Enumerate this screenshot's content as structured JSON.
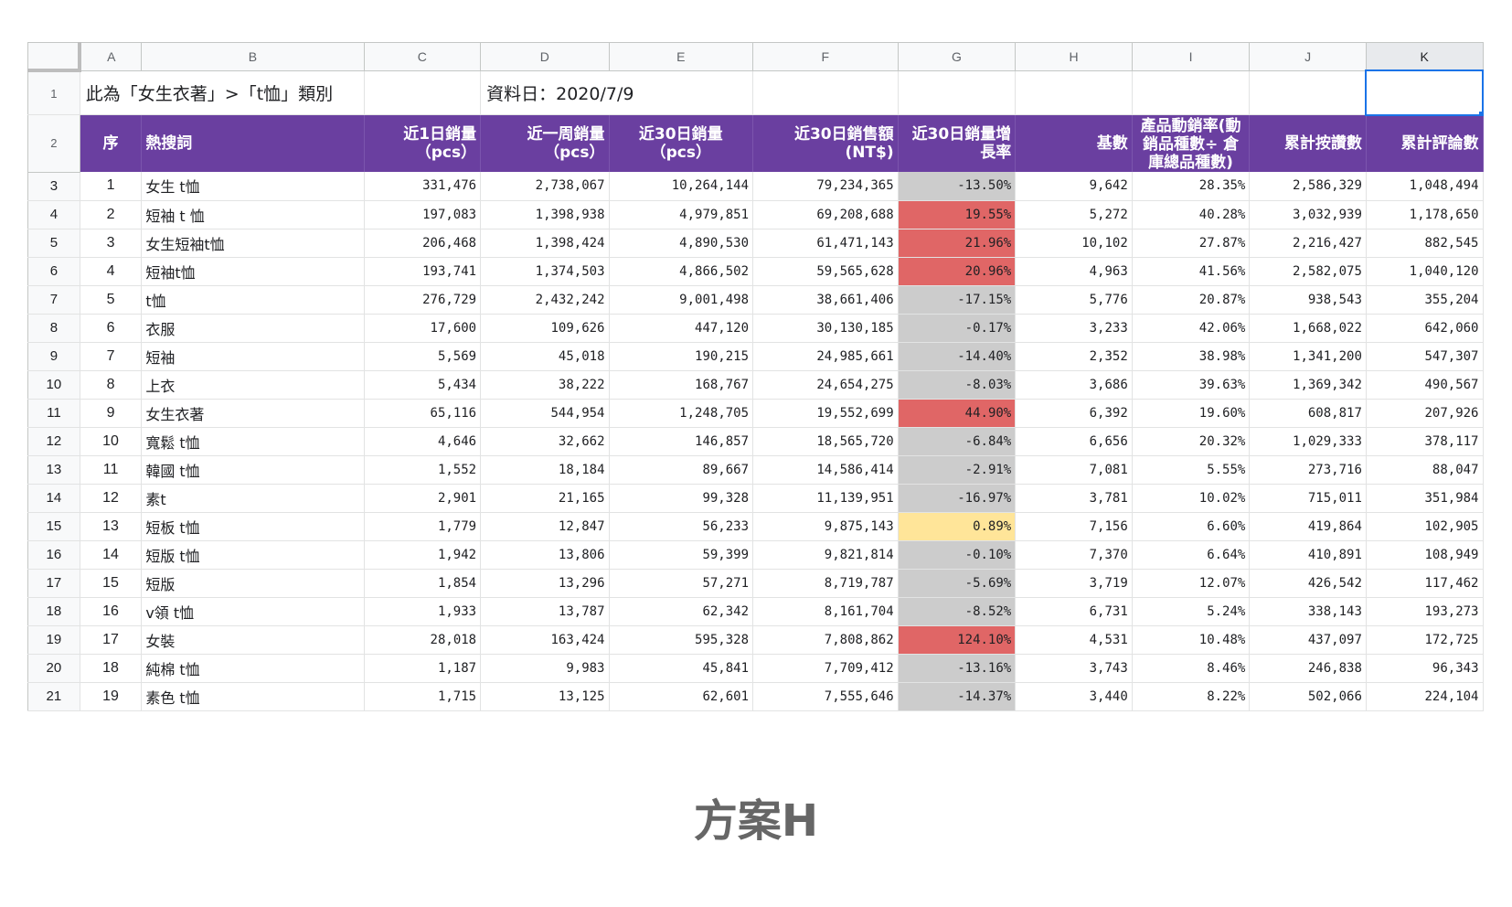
{
  "columns": [
    "A",
    "B",
    "C",
    "D",
    "E",
    "F",
    "G",
    "H",
    "I",
    "J",
    "K"
  ],
  "row1": {
    "category_note": "此為「女生衣著」>「t恤」類別",
    "data_date": "資料日：2020/7/9"
  },
  "headers": [
    "序",
    "熱搜詞",
    "近1日銷量（pcs）",
    "近一周銷量（pcs）",
    "近30日銷量（pcs）",
    "近30日銷售額(NT$)",
    "近30日銷量增長率",
    "基數",
    "產品動銷率(動銷品種數÷ 倉庫總品種數)",
    "累計按讚數",
    "累計評論數"
  ],
  "rows": [
    {
      "seq": "1",
      "kw": "女生 t恤",
      "d1": "331,476",
      "w1": "2,738,067",
      "d30": "10,264,144",
      "sales": "79,234,365",
      "growth": "-13.50%",
      "gc": "grey",
      "base": "9,642",
      "rate": "28.35%",
      "likes": "2,586,329",
      "reviews": "1,048,494"
    },
    {
      "seq": "2",
      "kw": "短袖 t 恤",
      "d1": "197,083",
      "w1": "1,398,938",
      "d30": "4,979,851",
      "sales": "69,208,688",
      "growth": "19.55%",
      "gc": "red",
      "base": "5,272",
      "rate": "40.28%",
      "likes": "3,032,939",
      "reviews": "1,178,650"
    },
    {
      "seq": "3",
      "kw": "女生短袖t恤",
      "d1": "206,468",
      "w1": "1,398,424",
      "d30": "4,890,530",
      "sales": "61,471,143",
      "growth": "21.96%",
      "gc": "red",
      "base": "10,102",
      "rate": "27.87%",
      "likes": "2,216,427",
      "reviews": "882,545"
    },
    {
      "seq": "4",
      "kw": "短袖t恤",
      "d1": "193,741",
      "w1": "1,374,503",
      "d30": "4,866,502",
      "sales": "59,565,628",
      "growth": "20.96%",
      "gc": "red",
      "base": "4,963",
      "rate": "41.56%",
      "likes": "2,582,075",
      "reviews": "1,040,120"
    },
    {
      "seq": "5",
      "kw": "t恤",
      "d1": "276,729",
      "w1": "2,432,242",
      "d30": "9,001,498",
      "sales": "38,661,406",
      "growth": "-17.15%",
      "gc": "grey",
      "base": "5,776",
      "rate": "20.87%",
      "likes": "938,543",
      "reviews": "355,204"
    },
    {
      "seq": "6",
      "kw": "衣服",
      "d1": "17,600",
      "w1": "109,626",
      "d30": "447,120",
      "sales": "30,130,185",
      "growth": "-0.17%",
      "gc": "grey",
      "base": "3,233",
      "rate": "42.06%",
      "likes": "1,668,022",
      "reviews": "642,060"
    },
    {
      "seq": "7",
      "kw": "短袖",
      "d1": "5,569",
      "w1": "45,018",
      "d30": "190,215",
      "sales": "24,985,661",
      "growth": "-14.40%",
      "gc": "grey",
      "base": "2,352",
      "rate": "38.98%",
      "likes": "1,341,200",
      "reviews": "547,307"
    },
    {
      "seq": "8",
      "kw": "上衣",
      "d1": "5,434",
      "w1": "38,222",
      "d30": "168,767",
      "sales": "24,654,275",
      "growth": "-8.03%",
      "gc": "grey",
      "base": "3,686",
      "rate": "39.63%",
      "likes": "1,369,342",
      "reviews": "490,567"
    },
    {
      "seq": "9",
      "kw": "女生衣著",
      "d1": "65,116",
      "w1": "544,954",
      "d30": "1,248,705",
      "sales": "19,552,699",
      "growth": "44.90%",
      "gc": "red",
      "base": "6,392",
      "rate": "19.60%",
      "likes": "608,817",
      "reviews": "207,926"
    },
    {
      "seq": "10",
      "kw": "寬鬆 t恤",
      "d1": "4,646",
      "w1": "32,662",
      "d30": "146,857",
      "sales": "18,565,720",
      "growth": "-6.84%",
      "gc": "grey",
      "base": "6,656",
      "rate": "20.32%",
      "likes": "1,029,333",
      "reviews": "378,117"
    },
    {
      "seq": "11",
      "kw": "韓國 t恤",
      "d1": "1,552",
      "w1": "18,184",
      "d30": "89,667",
      "sales": "14,586,414",
      "growth": "-2.91%",
      "gc": "grey",
      "base": "7,081",
      "rate": "5.55%",
      "likes": "273,716",
      "reviews": "88,047"
    },
    {
      "seq": "12",
      "kw": "素t",
      "d1": "2,901",
      "w1": "21,165",
      "d30": "99,328",
      "sales": "11,139,951",
      "growth": "-16.97%",
      "gc": "grey",
      "base": "3,781",
      "rate": "10.02%",
      "likes": "715,011",
      "reviews": "351,984"
    },
    {
      "seq": "13",
      "kw": "短板 t恤",
      "d1": "1,779",
      "w1": "12,847",
      "d30": "56,233",
      "sales": "9,875,143",
      "growth": "0.89%",
      "gc": "yellow",
      "base": "7,156",
      "rate": "6.60%",
      "likes": "419,864",
      "reviews": "102,905"
    },
    {
      "seq": "14",
      "kw": "短版 t恤",
      "d1": "1,942",
      "w1": "13,806",
      "d30": "59,399",
      "sales": "9,821,814",
      "growth": "-0.10%",
      "gc": "grey",
      "base": "7,370",
      "rate": "6.64%",
      "likes": "410,891",
      "reviews": "108,949"
    },
    {
      "seq": "15",
      "kw": "短版",
      "d1": "1,854",
      "w1": "13,296",
      "d30": "57,271",
      "sales": "8,719,787",
      "growth": "-5.69%",
      "gc": "grey",
      "base": "3,719",
      "rate": "12.07%",
      "likes": "426,542",
      "reviews": "117,462"
    },
    {
      "seq": "16",
      "kw": "v領 t恤",
      "d1": "1,933",
      "w1": "13,787",
      "d30": "62,342",
      "sales": "8,161,704",
      "growth": "-8.52%",
      "gc": "grey",
      "base": "6,731",
      "rate": "5.24%",
      "likes": "338,143",
      "reviews": "193,273"
    },
    {
      "seq": "17",
      "kw": "女裝",
      "d1": "28,018",
      "w1": "163,424",
      "d30": "595,328",
      "sales": "7,808,862",
      "growth": "124.10%",
      "gc": "red",
      "base": "4,531",
      "rate": "10.48%",
      "likes": "437,097",
      "reviews": "172,725"
    },
    {
      "seq": "18",
      "kw": "純棉 t恤",
      "d1": "1,187",
      "w1": "9,983",
      "d30": "45,841",
      "sales": "7,709,412",
      "growth": "-13.16%",
      "gc": "grey",
      "base": "3,743",
      "rate": "8.46%",
      "likes": "246,838",
      "reviews": "96,343"
    },
    {
      "seq": "19",
      "kw": "素色 t恤",
      "d1": "1,715",
      "w1": "13,125",
      "d30": "62,601",
      "sales": "7,555,646",
      "growth": "-14.37%",
      "gc": "grey",
      "base": "3,440",
      "rate": "8.22%",
      "likes": "502,066",
      "reviews": "224,104"
    }
  ],
  "caption": "方案H",
  "colors": {
    "header_bg": "#6a3fa0",
    "grey": "#cccccc",
    "red": "#e06666",
    "yellow": "#ffe599",
    "selection": "#1a73e8"
  }
}
